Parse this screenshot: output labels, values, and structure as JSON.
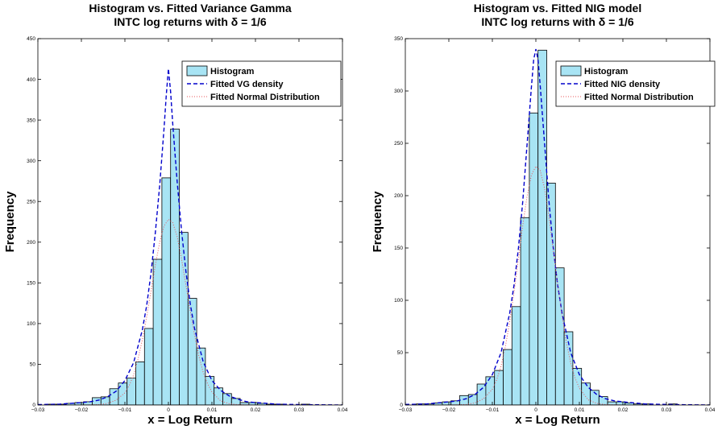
{
  "chart_data": [
    {
      "type": "histogram",
      "title": "Histogram vs. Fitted Variance Gamma",
      "subtitle": "INTC log returns with δ = 1/6",
      "xlabel": "x = Log Return",
      "ylabel": "Frequency",
      "xlim": [
        -0.03,
        0.04
      ],
      "ylim": [
        0,
        450
      ],
      "xticks": [
        -0.03,
        -0.02,
        -0.01,
        0,
        0.01,
        0.02,
        0.03,
        0.04
      ],
      "xtick_labels": [
        "−0.03",
        "−0.02",
        "−0.01",
        "0",
        "0.01",
        "0.02",
        "0.03",
        "0.04"
      ],
      "yticks": [
        0,
        50,
        100,
        150,
        200,
        250,
        300,
        350,
        400,
        450
      ],
      "ytick_labels": [
        "0",
        "50",
        "100",
        "150",
        "200",
        "250",
        "300",
        "350",
        "400",
        "450"
      ],
      "grid": false,
      "legend_position": "top-right",
      "legend": [
        "Histogram",
        "Fitted VG density",
        "Fitted Normal Distribution"
      ],
      "bins": {
        "left": [
          -0.0315,
          -0.0295,
          -0.0275,
          -0.0255,
          -0.0235,
          -0.0215,
          -0.0195,
          -0.0175,
          -0.0155,
          -0.0135,
          -0.0115,
          -0.0095,
          -0.0075,
          -0.0055,
          -0.0035,
          -0.0015,
          0.0005,
          0.0025,
          0.0045,
          0.0065,
          0.0085,
          0.0105,
          0.0125,
          0.0145,
          0.0165,
          0.0185,
          0.0205,
          0.0225,
          0.0245,
          0.0265,
          0.0285,
          0.0305
        ],
        "width": 0.002,
        "counts": [
          0,
          0,
          1,
          1,
          2,
          3,
          4,
          9,
          10,
          20,
          27,
          33,
          53,
          94,
          179,
          279,
          339,
          212,
          131,
          70,
          35,
          21,
          14,
          8,
          3,
          3,
          2,
          1,
          1,
          0,
          0,
          1
        ]
      },
      "series": [
        {
          "name": "Fitted VG density",
          "color": "#0000cc",
          "style": "dashed",
          "x": [
            -0.03,
            -0.025,
            -0.02,
            -0.018,
            -0.016,
            -0.014,
            -0.012,
            -0.01,
            -0.008,
            -0.006,
            -0.005,
            -0.004,
            -0.003,
            -0.002,
            -0.001,
            -0.0005,
            0,
            0.0005,
            0.001,
            0.002,
            0.003,
            0.004,
            0.005,
            0.006,
            0.008,
            0.01,
            0.012,
            0.014,
            0.016,
            0.018,
            0.02,
            0.025,
            0.03,
            0.04
          ],
          "y": [
            0.5,
            1,
            3,
            4,
            6,
            10,
            17,
            30,
            52,
            92,
            122,
            162,
            212,
            270,
            340,
            380,
            413,
            385,
            345,
            275,
            215,
            165,
            125,
            94,
            53,
            30,
            18,
            11,
            7,
            4,
            3,
            1,
            0.5,
            0
          ]
        },
        {
          "name": "Fitted Normal Distribution",
          "color": "#e8555a",
          "style": "dotted",
          "x": [
            -0.03,
            -0.02,
            -0.016,
            -0.014,
            -0.012,
            -0.01,
            -0.009,
            -0.008,
            -0.007,
            -0.006,
            -0.005,
            -0.004,
            -0.003,
            -0.002,
            -0.001,
            0,
            0.001,
            0.002,
            0.003,
            0.004,
            0.005,
            0.006,
            0.007,
            0.008,
            0.009,
            0.01,
            0.012,
            0.014,
            0.016,
            0.02,
            0.03,
            0.04
          ],
          "y": [
            0,
            0,
            0.5,
            2,
            6,
            15,
            24,
            37,
            56,
            80,
            108,
            140,
            172,
            200,
            220,
            228,
            224,
            207,
            180,
            148,
            116,
            86,
            60,
            40,
            26,
            16,
            5,
            1.5,
            0.5,
            0,
            0,
            0
          ]
        }
      ]
    },
    {
      "type": "histogram",
      "title": "Histogram vs. Fitted NIG model",
      "subtitle": "INTC log returns with δ = 1/6",
      "xlabel": "x = Log Return",
      "ylabel": "Frequency",
      "xlim": [
        -0.03,
        0.04
      ],
      "ylim": [
        0,
        350
      ],
      "xticks": [
        -0.03,
        -0.02,
        -0.01,
        0,
        0.01,
        0.02,
        0.03,
        0.04
      ],
      "xtick_labels": [
        "−0.03",
        "−0.02",
        "−0.01",
        "0",
        "0.01",
        "0.02",
        "0.03",
        "0.04"
      ],
      "yticks": [
        0,
        50,
        100,
        150,
        200,
        250,
        300,
        350
      ],
      "ytick_labels": [
        "0",
        "50",
        "100",
        "150",
        "200",
        "250",
        "300",
        "350"
      ],
      "grid": false,
      "legend_position": "top-right",
      "legend": [
        "Histogram",
        "Fitted NIG density",
        "Fitted Normal Distribution"
      ],
      "bins": {
        "left": [
          -0.0315,
          -0.0295,
          -0.0275,
          -0.0255,
          -0.0235,
          -0.0215,
          -0.0195,
          -0.0175,
          -0.0155,
          -0.0135,
          -0.0115,
          -0.0095,
          -0.0075,
          -0.0055,
          -0.0035,
          -0.0015,
          0.0005,
          0.0025,
          0.0045,
          0.0065,
          0.0085,
          0.0105,
          0.0125,
          0.0145,
          0.0165,
          0.0185,
          0.0205,
          0.0225,
          0.0245,
          0.0265,
          0.0285,
          0.0305
        ],
        "width": 0.002,
        "counts": [
          0,
          0,
          1,
          1,
          2,
          3,
          4,
          9,
          10,
          20,
          27,
          33,
          53,
          94,
          179,
          279,
          339,
          212,
          131,
          70,
          35,
          21,
          14,
          8,
          3,
          3,
          2,
          1,
          1,
          0,
          0,
          1
        ]
      },
      "series": [
        {
          "name": "Fitted NIG density",
          "color": "#0000cc",
          "style": "dashed",
          "x": [
            -0.03,
            -0.025,
            -0.02,
            -0.018,
            -0.016,
            -0.014,
            -0.012,
            -0.01,
            -0.008,
            -0.006,
            -0.005,
            -0.004,
            -0.003,
            -0.002,
            -0.001,
            -0.0005,
            0,
            0.0005,
            0.001,
            0.002,
            0.003,
            0.004,
            0.005,
            0.006,
            0.008,
            0.01,
            0.012,
            0.014,
            0.016,
            0.018,
            0.02,
            0.025,
            0.03,
            0.04
          ],
          "y": [
            0.5,
            1,
            3,
            4,
            6,
            10,
            17,
            29,
            50,
            88,
            115,
            150,
            195,
            250,
            305,
            330,
            340,
            330,
            305,
            250,
            195,
            150,
            115,
            88,
            50,
            29,
            17,
            10,
            6,
            4,
            3,
            1,
            0.5,
            0
          ]
        },
        {
          "name": "Fitted Normal Distribution",
          "color": "#e8555a",
          "style": "dotted",
          "x": [
            -0.03,
            -0.02,
            -0.016,
            -0.014,
            -0.012,
            -0.01,
            -0.009,
            -0.008,
            -0.007,
            -0.006,
            -0.005,
            -0.004,
            -0.003,
            -0.002,
            -0.001,
            0,
            0.001,
            0.002,
            0.003,
            0.004,
            0.005,
            0.006,
            0.007,
            0.008,
            0.009,
            0.01,
            0.012,
            0.014,
            0.016,
            0.02,
            0.03,
            0.04
          ],
          "y": [
            0,
            0,
            0.5,
            2,
            6,
            15,
            24,
            37,
            56,
            80,
            108,
            140,
            172,
            200,
            220,
            228,
            224,
            207,
            180,
            148,
            116,
            86,
            60,
            40,
            26,
            16,
            5,
            1.5,
            0.5,
            0,
            0,
            0
          ]
        }
      ]
    }
  ],
  "colors": {
    "bar_fill": "#a8e4f4",
    "bar_edge": "#000000",
    "axes": "#000000",
    "background": "#ffffff"
  }
}
